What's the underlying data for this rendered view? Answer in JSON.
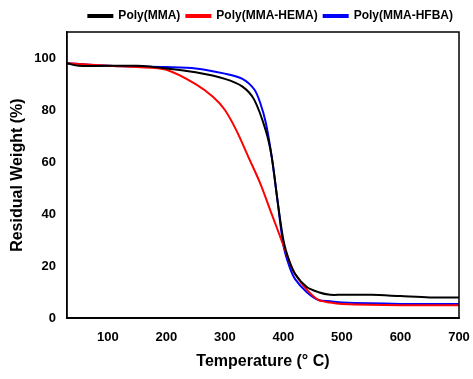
{
  "chart_data": {
    "type": "line",
    "x_label": "Temperature (° C)",
    "y_label": "Residual Weight (%)",
    "xlim": [
      30,
      700
    ],
    "xticks": [
      100,
      200,
      300,
      400,
      500,
      600,
      700
    ],
    "ylim": [
      0,
      110
    ],
    "yticks": [
      0,
      20,
      40,
      60,
      80,
      100
    ],
    "legend": "upper right",
    "grid": false,
    "series": [
      {
        "name": "Poly(MMA)",
        "color": "#000000",
        "line_style": "solid",
        "marker": "none",
        "x": [
          30,
          50,
          100,
          150,
          200,
          250,
          300,
          330,
          350,
          370,
          380,
          390,
          400,
          410,
          420,
          440,
          460,
          480,
          500,
          550,
          600,
          650,
          700
        ],
        "values": [
          98,
          97,
          97,
          97,
          96,
          94.5,
          92,
          89,
          84,
          72,
          62,
          45,
          30,
          22,
          17,
          12,
          10,
          9,
          9,
          9,
          8.5,
          8,
          8
        ]
      },
      {
        "name": "Poly(MMA-HEMA)",
        "color": "#ff0000",
        "line_style": "solid",
        "marker": "none",
        "x": [
          30,
          100,
          150,
          200,
          250,
          280,
          300,
          320,
          340,
          360,
          380,
          400,
          410,
          420,
          440,
          460,
          480,
          500,
          600,
          700
        ],
        "values": [
          98,
          97,
          96.5,
          95.5,
          90,
          85,
          80,
          72,
          62,
          52,
          40,
          28,
          22,
          17,
          11,
          7,
          6,
          5.5,
          5,
          5
        ]
      },
      {
        "name": "Poly(MMA-HFBA)",
        "color": "#0000ff",
        "line_style": "solid",
        "marker": "none",
        "x": [
          30,
          100,
          200,
          250,
          300,
          330,
          350,
          360,
          370,
          380,
          390,
          400,
          410,
          420,
          440,
          460,
          480,
          500,
          600,
          700
        ],
        "values": [
          98,
          97,
          96.5,
          96,
          94,
          92,
          88,
          83,
          75,
          62,
          45,
          28,
          20,
          15,
          10,
          7,
          6.5,
          6,
          5.5,
          5.5
        ]
      }
    ]
  }
}
